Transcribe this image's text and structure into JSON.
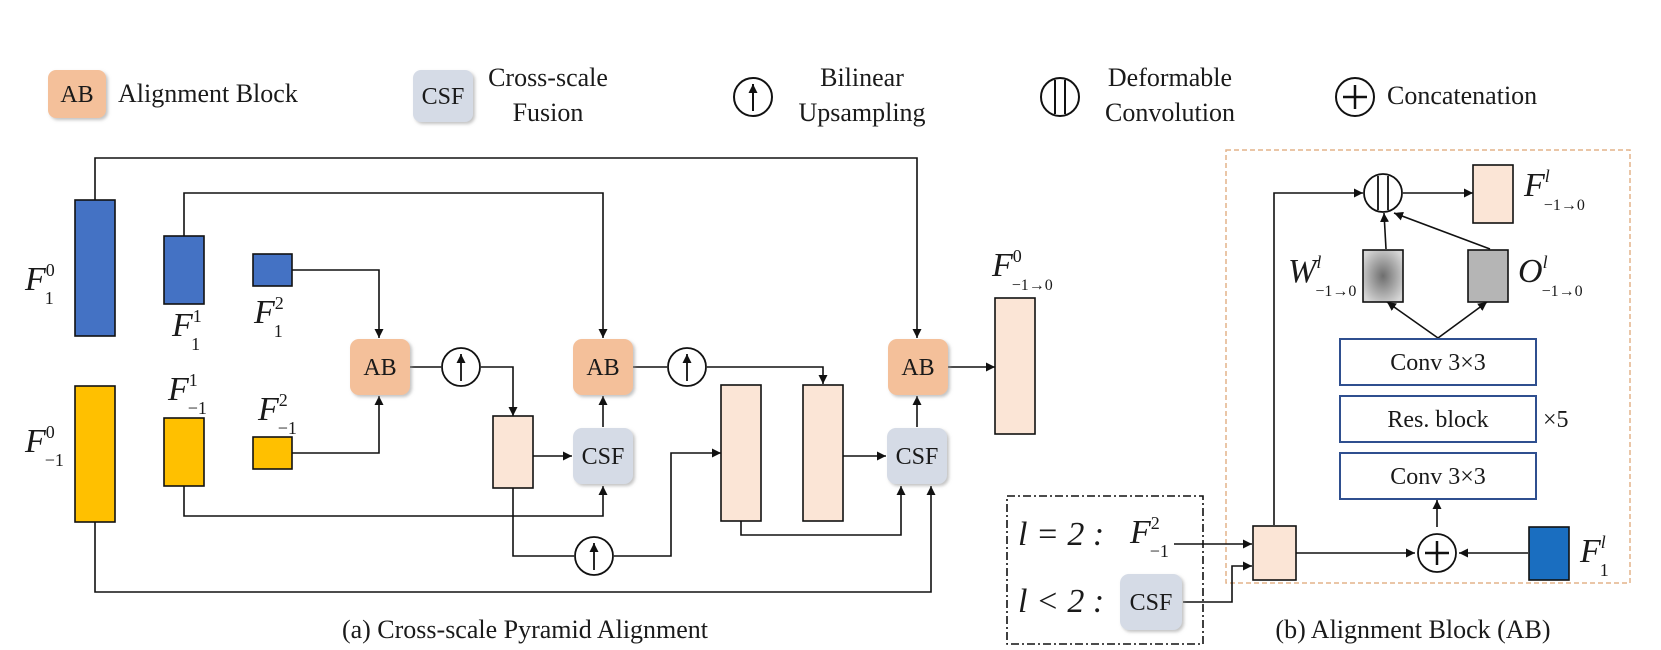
{
  "legend": {
    "ab_short": "AB",
    "ab_label": "Alignment Block",
    "csf_short": "CSF",
    "csf_label_line1": "Cross-scale",
    "csf_label_line2": "Fusion",
    "upsample_line1": "Bilinear",
    "upsample_line2": "Upsampling",
    "deform_line1": "Deformable",
    "deform_line2": "Convolution",
    "concat_label": "Concatenation"
  },
  "pyramid": {
    "ab_label": "AB",
    "csf_label": "CSF",
    "caption": "(a) Cross-scale Pyramid Alignment"
  },
  "math": {
    "F": "F",
    "W": "W",
    "O": "O",
    "sup0": "0",
    "sup1": "1",
    "sup2": "2",
    "supl": "l",
    "sub1": "1",
    "subm1": "−1",
    "subarrow": "−1→0"
  },
  "alignment_block": {
    "conv_top": "Conv 3×3",
    "res_block": "Res. block",
    "repeat": "×5",
    "conv_bottom": "Conv 3×3",
    "cond_l_eq": "l = 2 :",
    "cond_l_lt": "l < 2 :",
    "csf_label": "CSF",
    "caption": "(b) Alignment Block (AB)"
  },
  "colors": {
    "blue_feature": "#4472c4",
    "yellow_feature": "#ffc000",
    "ab_fill": "#f4c09a",
    "csf_fill": "#d5dbe6",
    "feature_peach": "#fbe5d6",
    "conv_border": "#2f4f8f",
    "dashed_orange": "#e4b38a",
    "ref_blue": "#1a6ec0"
  }
}
